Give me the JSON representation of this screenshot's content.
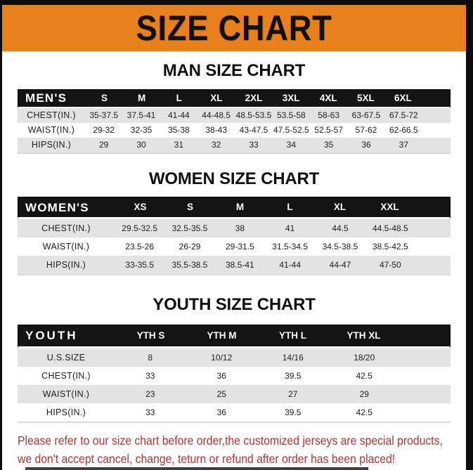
{
  "banner": {
    "title": "SIZE CHART",
    "bg_color": "#E8811C",
    "text_color": "#111111"
  },
  "colors": {
    "frame_black": "#0D0D0D",
    "header_bg": "#141414",
    "header_text": "#FFFFFF",
    "row_gray": "#E3E3E3",
    "row_white": "#FFFFFF",
    "footer_red": "#B33434"
  },
  "sections": [
    {
      "heading": "MAN SIZE CHART",
      "table": {
        "header": {
          "label": "MEN'S",
          "columns": [
            "S",
            "M",
            "L",
            "XL",
            "2XL",
            "3XL",
            "4XL",
            "5XL",
            "6XL"
          ]
        },
        "rows": [
          {
            "label": "CHEST(IN.)",
            "values": [
              "35-37.5",
              "37.5-41",
              "41-44",
              "44-48.5",
              "48.5-53.5",
              "53.5-58",
              "58-63",
              "63-67.5",
              "67.5-72"
            ]
          },
          {
            "label": "WAIST(IN.)",
            "values": [
              "29-32",
              "32-35",
              "35-38",
              "38-43",
              "43-47.5",
              "47.5-52.5",
              "52.5-57",
              "57-62",
              "62-66.5"
            ]
          },
          {
            "label": "HIPS(IN.)",
            "values": [
              "29",
              "30",
              "31",
              "32",
              "33",
              "34",
              "35",
              "36",
              "37"
            ]
          }
        ]
      }
    },
    {
      "heading": "WOMEN SIZE CHART",
      "table": {
        "header": {
          "label": "WOMEN'S",
          "columns": [
            "XS",
            "S",
            "M",
            "L",
            "XL",
            "XXL"
          ]
        },
        "rows": [
          {
            "label": "CHEST(IN.)",
            "values": [
              "29.5-32.5",
              "32.5-35.5",
              "38",
              "41",
              "44.5",
              "44.5-48.5"
            ]
          },
          {
            "label": "WAIST(IN.)",
            "values": [
              "23.5-26",
              "26-29",
              "29-31.5",
              "31.5-34.5",
              "34.5-38.5",
              "38.5-42.5"
            ]
          },
          {
            "label": "HIPS(IN.)",
            "values": [
              "33-35.5",
              "35.5-38.5",
              "38.5-41",
              "41-44",
              "44-47",
              "47-50"
            ]
          }
        ]
      }
    },
    {
      "heading": "YOUTH SIZE CHART",
      "table": {
        "header": {
          "label": "YOUTH",
          "columns": [
            "YTH S",
            "YTH M",
            "YTH L",
            "YTH XL"
          ]
        },
        "rows": [
          {
            "label": "U.S.SIZE",
            "values": [
              "8",
              "10/12",
              "14/16",
              "18/20"
            ]
          },
          {
            "label": "CHEST(IN.)",
            "values": [
              "33",
              "36",
              "39.5",
              "42.5"
            ]
          },
          {
            "label": "WAIST(IN.)",
            "values": [
              "23",
              "25",
              "27",
              "29"
            ]
          },
          {
            "label": "HIPS(IN.)",
            "values": [
              "33",
              "36",
              "39.5",
              "42.5"
            ]
          }
        ]
      }
    }
  ],
  "footer": {
    "lines": [
      "Please refer to our size chart before order,the customized jerseys are special products,",
      "we don't accept cancel, change, teturn or refund after order has been placed!"
    ]
  }
}
